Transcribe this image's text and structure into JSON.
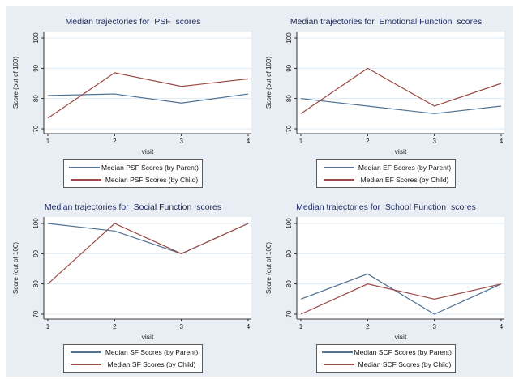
{
  "page": {
    "background": "#ffffff",
    "canvas_background": "#e8eef3"
  },
  "styles": {
    "plot_background": "#ffffff",
    "grid_color": "#dde9f2",
    "axis_color": "#000000",
    "tick_label_color": "#1a1a1a",
    "title_color": "#1e2a5e",
    "legend_border": "#5a5a5a",
    "parent_line_color": "#4e7194",
    "child_line_color": "#9b4a45"
  },
  "chart_data": [
    {
      "type": "line",
      "title": "Median trajectories for  PSF  scores",
      "xlabel": "visit",
      "ylabel": "Score (out of 100)",
      "x": [
        1,
        2,
        3,
        4
      ],
      "xticks": [
        1,
        2,
        3,
        4
      ],
      "ylim": [
        70,
        100
      ],
      "yticks": [
        70,
        80,
        90,
        100
      ],
      "grid": true,
      "legend_position": "bottom",
      "series": [
        {
          "name": "Median PSF Scores (by Parent)",
          "color": "#4e7194",
          "values": [
            81,
            81.5,
            78.5,
            81.5
          ]
        },
        {
          "name": "Median PSF Scores (by Child)",
          "color": "#9b4a45",
          "values": [
            73.5,
            88.5,
            84,
            86.5
          ]
        }
      ]
    },
    {
      "type": "line",
      "title": "Median trajectories for  Emotional Function  scores",
      "xlabel": "visit",
      "ylabel": "Score (out of 100)",
      "x": [
        1,
        2,
        3,
        4
      ],
      "xticks": [
        1,
        2,
        3,
        4
      ],
      "ylim": [
        70,
        100
      ],
      "yticks": [
        70,
        80,
        90,
        100
      ],
      "grid": true,
      "legend_position": "bottom",
      "series": [
        {
          "name": "Median EF Scores (by Parent)",
          "color": "#4e7194",
          "values": [
            80,
            77.5,
            75,
            77.5
          ]
        },
        {
          "name": "Median EF Scores (by Child)",
          "color": "#9b4a45",
          "values": [
            75,
            90,
            77.5,
            85
          ]
        }
      ]
    },
    {
      "type": "line",
      "title": "Median trajectories for  Social Function  scores",
      "xlabel": "visit",
      "ylabel": "Score (out of 100)",
      "x": [
        1,
        2,
        3,
        4
      ],
      "xticks": [
        1,
        2,
        3,
        4
      ],
      "ylim": [
        70,
        100
      ],
      "yticks": [
        70,
        80,
        90,
        100
      ],
      "grid": true,
      "legend_position": "bottom",
      "series": [
        {
          "name": "Median SF Scores (by Parent)",
          "color": "#4e7194",
          "values": [
            100,
            97.5,
            90,
            100
          ]
        },
        {
          "name": "Median SF Scores (by Child)",
          "color": "#9b4a45",
          "values": [
            80,
            100,
            90,
            100
          ]
        }
      ]
    },
    {
      "type": "line",
      "title": "Median trajectories for  School Function  scores",
      "xlabel": "visit",
      "ylabel": "Score (out of 100)",
      "x": [
        1,
        2,
        3,
        4
      ],
      "xticks": [
        1,
        2,
        3,
        4
      ],
      "ylim": [
        70,
        100
      ],
      "yticks": [
        70,
        80,
        90,
        100
      ],
      "grid": true,
      "legend_position": "bottom",
      "series": [
        {
          "name": "Median SCF Scores (by Parent)",
          "color": "#4e7194",
          "values": [
            75,
            83.3,
            70,
            80
          ]
        },
        {
          "name": "Median SCF Scores (by Child)",
          "color": "#9b4a45",
          "values": [
            70,
            80,
            75,
            80
          ]
        }
      ]
    }
  ]
}
